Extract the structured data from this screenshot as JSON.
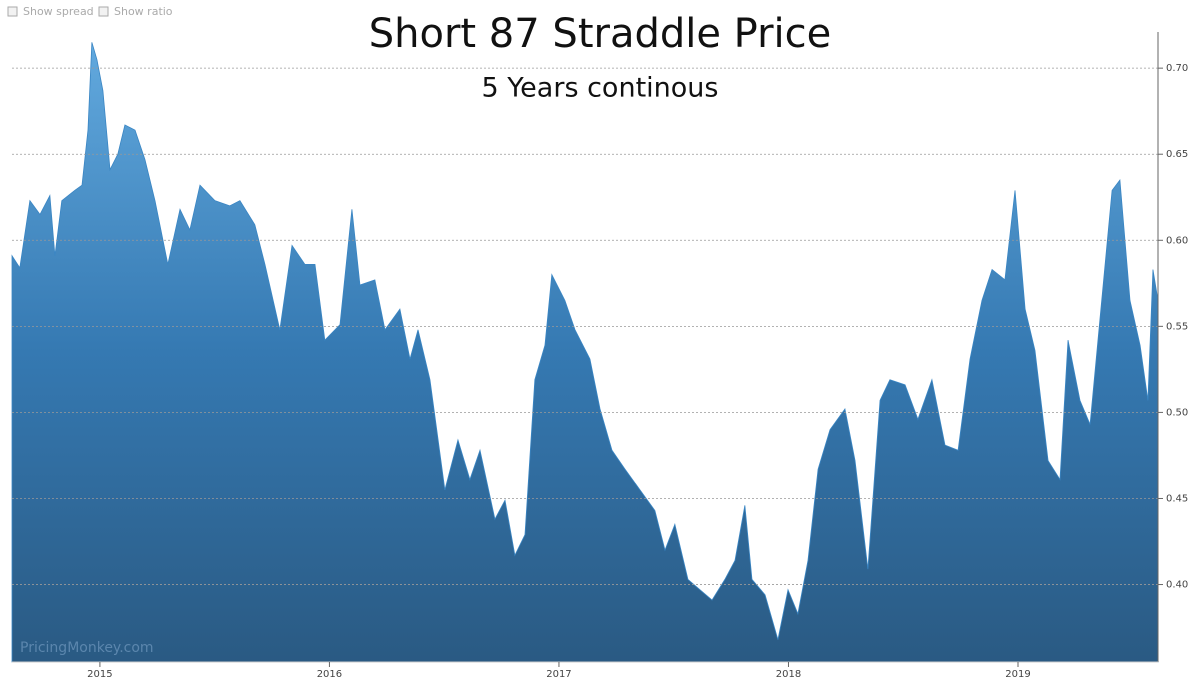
{
  "controls": [
    "Show spread",
    "Show ratio"
  ],
  "chart_data": {
    "type": "area",
    "title": "Short 87 Straddle Price",
    "subtitle": "5 Years continous",
    "watermark": "PricingMonkey.com",
    "color": "#3a86c4",
    "grid": true,
    "x": [
      2014.617,
      2014.651,
      2014.695,
      2014.739,
      2014.782,
      2014.804,
      2014.834,
      2014.891,
      2014.922,
      2014.948,
      2014.965,
      2014.987,
      2015.013,
      2015.044,
      2015.078,
      2015.109,
      2015.153,
      2015.196,
      2015.24,
      2015.296,
      2015.349,
      2015.392,
      2015.436,
      2015.501,
      2015.566,
      2015.61,
      2015.675,
      2015.719,
      2015.784,
      2015.837,
      2015.893,
      2015.937,
      2015.98,
      2016.046,
      2016.098,
      2016.133,
      2016.198,
      2016.242,
      2016.307,
      2016.351,
      2016.386,
      2016.438,
      2016.503,
      2016.56,
      2016.612,
      2016.656,
      2016.721,
      2016.765,
      2016.808,
      2016.852,
      2016.895,
      2016.939,
      2016.969,
      2017.026,
      2017.07,
      2017.135,
      2017.179,
      2017.231,
      2017.288,
      2017.353,
      2017.418,
      2017.462,
      2017.505,
      2017.562,
      2017.614,
      2017.667,
      2017.723,
      2017.767,
      2017.81,
      2017.841,
      2017.898,
      2017.954,
      2017.998,
      2018.041,
      2018.085,
      2018.129,
      2018.181,
      2018.246,
      2018.29,
      2018.346,
      2018.399,
      2018.442,
      2018.508,
      2018.564,
      2018.625,
      2018.682,
      2018.739,
      2018.791,
      2018.843,
      2018.887,
      2018.943,
      2018.987,
      2019.031,
      2019.074,
      2019.131,
      2019.183,
      2019.218,
      2019.27,
      2019.314,
      2019.357,
      2019.41,
      2019.444,
      2019.488,
      2019.532,
      2019.566,
      2019.588,
      2019.61
    ],
    "values": [
      0.591,
      0.584,
      0.623,
      0.615,
      0.626,
      0.591,
      0.623,
      0.629,
      0.632,
      0.664,
      0.715,
      0.705,
      0.687,
      0.641,
      0.65,
      0.667,
      0.664,
      0.647,
      0.623,
      0.586,
      0.618,
      0.606,
      0.632,
      0.623,
      0.62,
      0.623,
      0.609,
      0.586,
      0.548,
      0.597,
      0.586,
      0.586,
      0.542,
      0.551,
      0.618,
      0.574,
      0.577,
      0.548,
      0.56,
      0.531,
      0.548,
      0.519,
      0.455,
      0.484,
      0.461,
      0.478,
      0.438,
      0.449,
      0.417,
      0.429,
      0.519,
      0.539,
      0.58,
      0.565,
      0.548,
      0.531,
      0.502,
      0.478,
      0.467,
      0.455,
      0.443,
      0.42,
      0.435,
      0.403,
      0.397,
      0.391,
      0.403,
      0.414,
      0.446,
      0.403,
      0.394,
      0.368,
      0.397,
      0.383,
      0.414,
      0.467,
      0.49,
      0.502,
      0.472,
      0.409,
      0.507,
      0.519,
      0.516,
      0.496,
      0.519,
      0.481,
      0.478,
      0.531,
      0.565,
      0.583,
      0.577,
      0.629,
      0.56,
      0.536,
      0.472,
      0.461,
      0.542,
      0.507,
      0.493,
      0.554,
      0.629,
      0.635,
      0.565,
      0.539,
      0.507,
      0.583,
      0.565
    ],
    "xlim": [
      2014.617,
      2019.61
    ],
    "xticks": [
      2015,
      2016,
      2017,
      2018,
      2019
    ],
    "ylim": [
      0.355,
      0.721
    ],
    "yticks": [
      {
        "value": 0.4,
        "label": "0.40"
      },
      {
        "value": 0.45,
        "label": "0.45"
      },
      {
        "value": 0.5,
        "label": "0.50"
      },
      {
        "value": 0.55,
        "label": "0.55"
      },
      {
        "value": 0.6,
        "label": "0.60"
      },
      {
        "value": 0.65,
        "label": "0.65"
      },
      {
        "value": 0.7,
        "label": "0.70"
      }
    ]
  }
}
